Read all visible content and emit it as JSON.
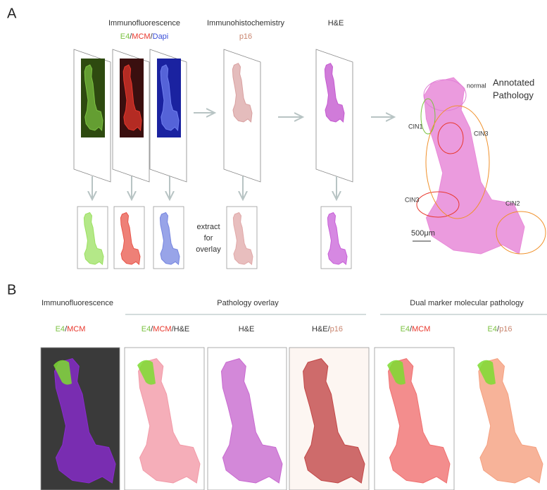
{
  "panel_a": {
    "letter": "A",
    "if_title": "Immunofluorescence",
    "if_stain": [
      {
        "text": "E4",
        "color": "#7cc242"
      },
      {
        "text": "/",
        "color": "#333333"
      },
      {
        "text": "MCM",
        "color": "#e8372c"
      },
      {
        "text": "/",
        "color": "#333333"
      },
      {
        "text": "Dapi",
        "color": "#3a4fd8"
      }
    ],
    "ihc_title": "Immunohistochemistry",
    "ihc_stain": [
      {
        "text": "p16",
        "color": "#c9856e"
      }
    ],
    "he_title": "H&E",
    "extract_label": [
      "extract",
      "for",
      "overlay"
    ],
    "annotated_title": [
      "Annotated",
      "Pathology"
    ],
    "annotations": [
      {
        "text": "normal",
        "color": "#e07fd6"
      },
      {
        "text": "CIN1",
        "color": "#7cc242"
      },
      {
        "text": "CIN3",
        "color": "#e8372c"
      },
      {
        "text": "CIN3",
        "color": "#e8372c"
      },
      {
        "text": "CIN2",
        "color": "#f0902a"
      }
    ],
    "scale_bar": "500μm"
  },
  "panel_b": {
    "letter": "B",
    "groups": [
      "Immunofluorescence",
      "Pathology overlay",
      "Dual marker molecular pathology"
    ],
    "columns": [
      [
        {
          "text": "E4",
          "color": "#7cc242"
        },
        {
          "text": "/",
          "color": "#333333"
        },
        {
          "text": "MCM",
          "color": "#e8372c"
        }
      ],
      [
        {
          "text": "E4",
          "color": "#7cc242"
        },
        {
          "text": "/",
          "color": "#333333"
        },
        {
          "text": "MCM",
          "color": "#e8372c"
        },
        {
          "text": "/H&E",
          "color": "#333333"
        }
      ],
      [
        {
          "text": "H&E",
          "color": "#333333"
        }
      ],
      [
        {
          "text": "H&E/",
          "color": "#333333"
        },
        {
          "text": "p16",
          "color": "#c9856e"
        }
      ],
      [
        {
          "text": "E4",
          "color": "#7cc242"
        },
        {
          "text": "/",
          "color": "#333333"
        },
        {
          "text": "MCM",
          "color": "#e8372c"
        }
      ],
      [
        {
          "text": "E4",
          "color": "#7cc242"
        },
        {
          "text": "/",
          "color": "#333333"
        },
        {
          "text": "p16",
          "color": "#c9856e"
        }
      ]
    ]
  }
}
